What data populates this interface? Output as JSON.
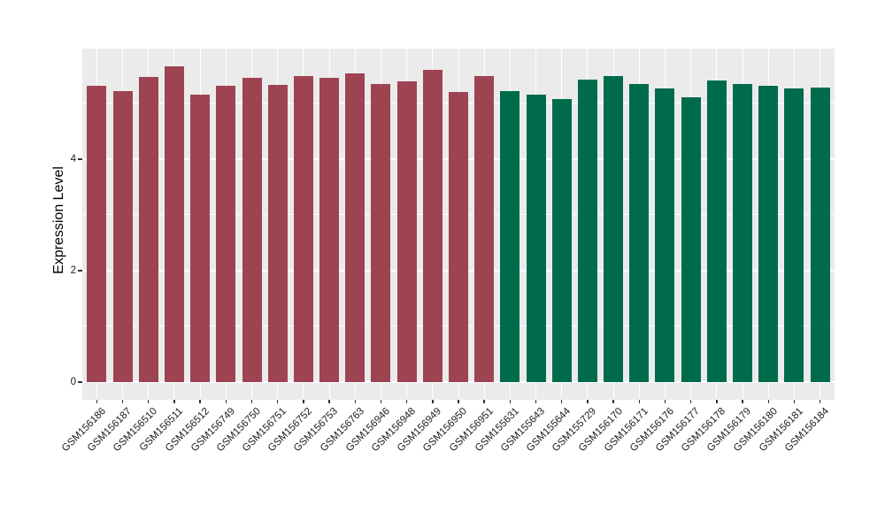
{
  "chart_data": {
    "type": "bar",
    "title": "",
    "xlabel": "",
    "ylabel": "Expression Level",
    "categories": [
      "GSM156186",
      "GSM156187",
      "GSM156510",
      "GSM156511",
      "GSM156512",
      "GSM156749",
      "GSM156750",
      "GSM156751",
      "GSM156752",
      "GSM156753",
      "GSM156763",
      "GSM156946",
      "GSM156948",
      "GSM156949",
      "GSM156950",
      "GSM156951",
      "GSM155631",
      "GSM155643",
      "GSM155644",
      "GSM155729",
      "GSM156170",
      "GSM156171",
      "GSM156176",
      "GSM156177",
      "GSM156178",
      "GSM156179",
      "GSM156180",
      "GSM156181",
      "GSM156184"
    ],
    "values": [
      5.32,
      5.22,
      5.48,
      5.67,
      5.16,
      5.31,
      5.46,
      5.33,
      5.49,
      5.46,
      5.54,
      5.35,
      5.39,
      5.61,
      5.2,
      5.5,
      5.22,
      5.16,
      5.08,
      5.43,
      5.5,
      5.35,
      5.27,
      5.11,
      5.42,
      5.35,
      5.32,
      5.27,
      5.28
    ],
    "group_index": [
      0,
      0,
      0,
      0,
      0,
      0,
      0,
      0,
      0,
      0,
      0,
      0,
      0,
      0,
      0,
      0,
      1,
      1,
      1,
      1,
      1,
      1,
      1,
      1,
      1,
      1,
      1,
      1,
      1
    ],
    "group_colors": [
      "#9E4352",
      "#006B4C"
    ],
    "yticks_major": [
      0,
      2,
      4
    ],
    "yticks_minor": [
      1,
      3,
      5
    ],
    "ylim": [
      -0.32,
      5.98
    ],
    "grid": "on",
    "legend_position": "none",
    "panel_background": "#EBEBEB",
    "grid_color": "#FFFFFF",
    "axis_text_color": "#1a1a1a"
  }
}
